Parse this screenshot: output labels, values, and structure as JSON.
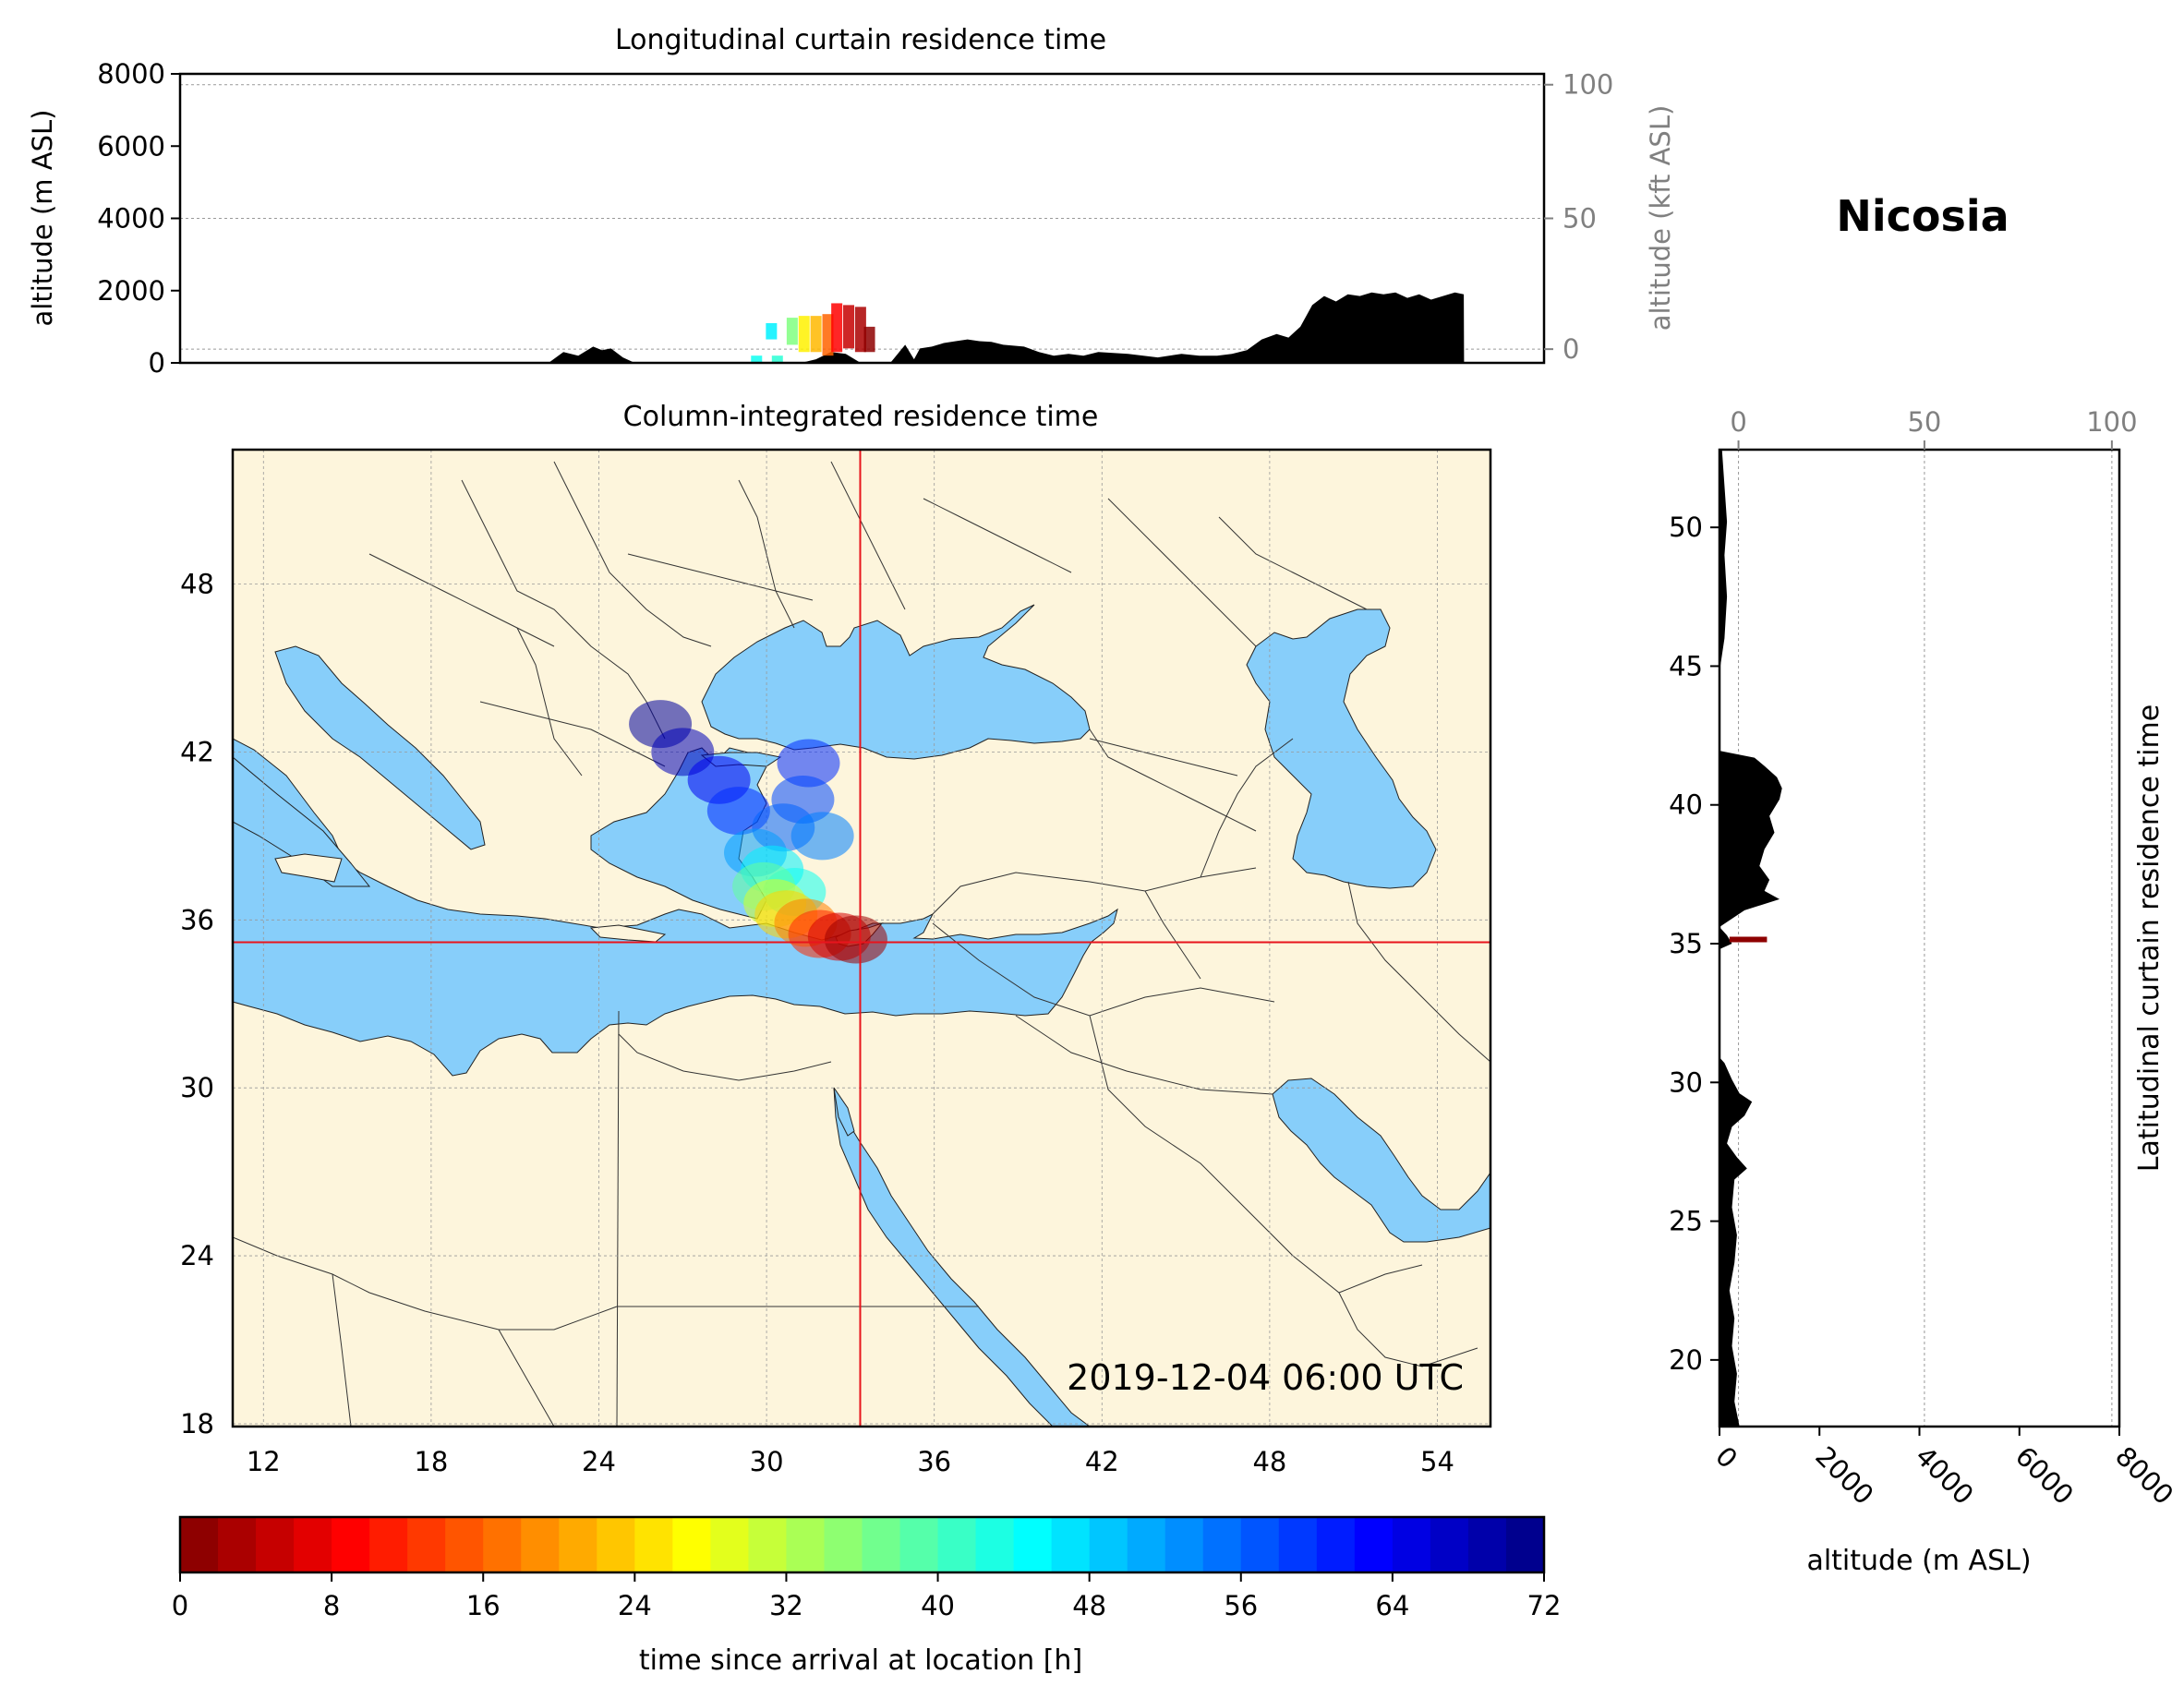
{
  "location_name": "Nicosia",
  "timestamp": "2019-12-04 06:00 UTC",
  "colors": {
    "land": "#fdf5dc",
    "sea": "#87cefa",
    "crosshair": "#e8141c",
    "axis": "#000000",
    "secondary_axis": "#808080"
  },
  "chart_data": [
    {
      "id": "longitudinal",
      "type": "area",
      "title": "Longitudinal curtain residence time",
      "ylabel": "altitude (m ASL)",
      "ylabel_right": "altitude (kft ASL)",
      "ylim": [
        0,
        8000
      ],
      "yticks": [
        0,
        2000,
        4000,
        6000,
        8000
      ],
      "yticks_right": [
        0,
        50,
        100
      ],
      "grid": true,
      "terrain_series": {
        "name": "",
        "x": [
          10,
          22.5,
          23,
          23.5,
          24,
          24.3,
          24.6,
          25,
          25.4,
          25.8,
          26.1,
          26.5,
          29,
          30,
          31,
          31.5,
          32,
          32.5,
          33,
          34,
          34.2,
          34.5,
          34.8,
          35,
          35.4,
          35.8,
          36.2,
          36.6,
          37,
          37.4,
          37.8,
          38.5,
          39,
          39.5,
          40,
          40.5,
          41,
          42,
          43,
          43.8,
          44.4,
          45,
          45.5,
          46,
          46.5,
          47,
          47.4,
          47.8,
          48.2,
          48.6,
          49,
          49.4,
          49.8,
          50.2,
          50.6,
          51,
          51.4,
          51.8,
          52.2,
          52.6,
          53,
          53.3,
          53.31,
          56
        ],
        "y": [
          0,
          0,
          300,
          200,
          450,
          350,
          400,
          150,
          0,
          0,
          0,
          0,
          0,
          0,
          0,
          100,
          300,
          250,
          0,
          0,
          200,
          500,
          100,
          400,
          450,
          550,
          600,
          650,
          600,
          580,
          500,
          450,
          300,
          200,
          250,
          200,
          300,
          250,
          150,
          250,
          200,
          200,
          250,
          350,
          650,
          800,
          700,
          1000,
          1600,
          1850,
          1700,
          1900,
          1850,
          1950,
          1900,
          1950,
          1800,
          1900,
          1750,
          1850,
          1950,
          1900,
          0,
          0
        ]
      },
      "residence_bars": [
        {
          "x": 29.5,
          "y0": 0,
          "y1": 200,
          "hours": 44
        },
        {
          "x": 30,
          "y0": 650,
          "y1": 1100,
          "hours": 46
        },
        {
          "x": 30.2,
          "y0": 0,
          "y1": 200,
          "hours": 42
        },
        {
          "x": 30.7,
          "y0": 500,
          "y1": 1250,
          "hours": 36
        },
        {
          "x": 31.1,
          "y0": 300,
          "y1": 1300,
          "hours": 26
        },
        {
          "x": 31.5,
          "y0": 300,
          "y1": 1300,
          "hours": 22
        },
        {
          "x": 31.9,
          "y0": 200,
          "y1": 1350,
          "hours": 16
        },
        {
          "x": 32.2,
          "y0": 300,
          "y1": 1650,
          "hours": 9
        },
        {
          "x": 32.6,
          "y0": 400,
          "y1": 1600,
          "hours": 5
        },
        {
          "x": 33,
          "y0": 300,
          "y1": 1550,
          "hours": 3
        },
        {
          "x": 33.3,
          "y0": 300,
          "y1": 1000,
          "hours": 1
        }
      ]
    },
    {
      "id": "map",
      "type": "heatmap",
      "title": "Column-integrated residence time",
      "xticks": [
        12,
        18,
        24,
        30,
        36,
        42,
        48,
        54
      ],
      "yticks": [
        18,
        24,
        30,
        36,
        42,
        48
      ],
      "grid": true,
      "receptor": {
        "lon": 33.35,
        "lat": 35.2
      },
      "plume_points": [
        {
          "lon": 33.2,
          "lat": 35.3,
          "hours": 2
        },
        {
          "lon": 32.6,
          "lat": 35.4,
          "hours": 6
        },
        {
          "lon": 31.9,
          "lat": 35.5,
          "hours": 12
        },
        {
          "lon": 31.4,
          "lat": 35.9,
          "hours": 18
        },
        {
          "lon": 30.7,
          "lat": 36.2,
          "hours": 24
        },
        {
          "lon": 30.3,
          "lat": 36.6,
          "hours": 30
        },
        {
          "lon": 29.9,
          "lat": 37.2,
          "hours": 38
        },
        {
          "lon": 30.2,
          "lat": 37.8,
          "hours": 46
        },
        {
          "lon": 29.6,
          "lat": 38.4,
          "hours": 52
        },
        {
          "lon": 30.6,
          "lat": 39.3,
          "hours": 56
        },
        {
          "lon": 29.0,
          "lat": 39.9,
          "hours": 60
        },
        {
          "lon": 31.3,
          "lat": 40.3,
          "hours": 58
        },
        {
          "lon": 31.5,
          "lat": 41.6,
          "hours": 60
        },
        {
          "lon": 28.3,
          "lat": 41.0,
          "hours": 64
        },
        {
          "lon": 27.0,
          "lat": 42.0,
          "hours": 68
        },
        {
          "lon": 26.2,
          "lat": 43.0,
          "hours": 70
        },
        {
          "lon": 32.0,
          "lat": 39.0,
          "hours": 54
        },
        {
          "lon": 31.0,
          "lat": 37.0,
          "hours": 44
        }
      ]
    },
    {
      "id": "latitudinal",
      "type": "area",
      "ylabel": "Latitudinal curtain residence time",
      "xlabel": "altitude (m ASL)",
      "xlim": [
        0,
        8000
      ],
      "xticks": [
        0,
        2000,
        4000,
        6000,
        8000
      ],
      "xticks_top": [
        0,
        50,
        100
      ],
      "yticks": [
        20,
        25,
        30,
        35,
        40,
        45,
        50
      ],
      "grid": true,
      "terrain_series": {
        "name": "",
        "lat": [
          17.6,
          18.5,
          19.5,
          20.5,
          21.5,
          22.5,
          23.5,
          24.5,
          25.5,
          26.5,
          26.9,
          27.3,
          27.8,
          28.4,
          28.8,
          29.3,
          29.6,
          30.1,
          30.7,
          30.9,
          34.8,
          35.0,
          35.3,
          35.6,
          36.2,
          36.6,
          36.9,
          37.3,
          37.8,
          38.4,
          39.0,
          39.6,
          40.2,
          40.6,
          41.0,
          41.4,
          41.7,
          41.95,
          44.8,
          46.0,
          47.5,
          49.0,
          50.2,
          51.5,
          52.8
        ],
        "altitude": [
          400,
          300,
          350,
          250,
          300,
          200,
          300,
          350,
          250,
          300,
          550,
          350,
          150,
          250,
          500,
          650,
          400,
          250,
          100,
          0,
          0,
          250,
          150,
          0,
          500,
          1200,
          900,
          1000,
          800,
          900,
          1100,
          1000,
          1200,
          1250,
          1150,
          900,
          700,
          0,
          0,
          100,
          150,
          100,
          150,
          100,
          50
        ]
      },
      "residence_marker": {
        "lat": 35.15,
        "x0": 200,
        "x1": 950,
        "hours": 1
      }
    }
  ],
  "colorbar": {
    "label": "time since arrival at location [h]",
    "ticks": [
      0,
      8,
      16,
      24,
      32,
      40,
      48,
      56,
      64,
      72
    ],
    "range": [
      0,
      72
    ],
    "colormap": "jet_r"
  }
}
